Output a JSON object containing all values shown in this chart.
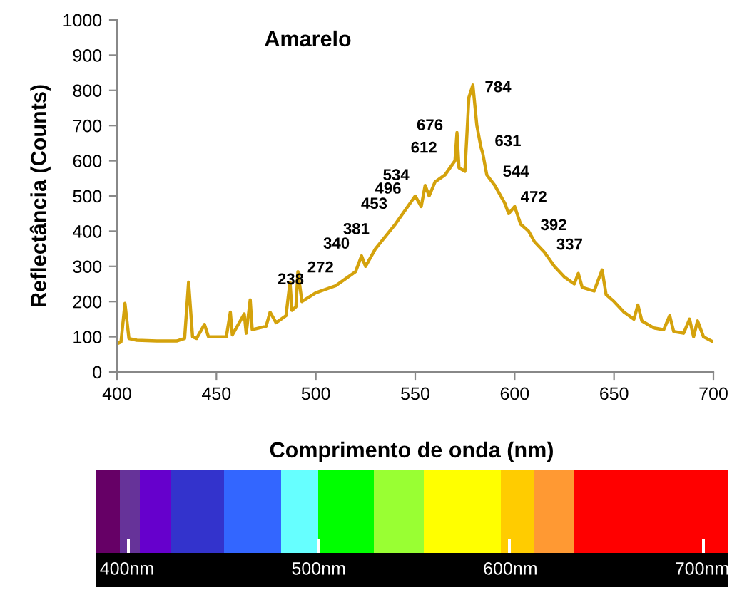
{
  "chart_data": {
    "type": "line",
    "title": "Amarelo",
    "xlabel": "Comprimento de onda (nm)",
    "ylabel": "Reflectância (Counts)",
    "x": [
      400,
      402,
      404,
      406,
      410,
      420,
      430,
      434,
      436,
      438,
      440,
      444,
      446,
      455,
      457,
      458,
      464,
      465,
      467,
      468,
      475,
      477,
      480,
      485,
      487,
      488,
      490,
      491,
      493,
      500,
      510,
      515,
      520,
      523,
      525,
      530,
      540,
      545,
      550,
      553,
      555,
      557,
      560,
      565,
      570,
      571,
      572,
      575,
      577,
      579,
      581,
      583,
      584,
      586,
      590,
      595,
      597,
      600,
      603,
      607,
      610,
      615,
      620,
      625,
      630,
      632,
      634,
      640,
      644,
      646,
      650,
      655,
      660,
      662,
      664,
      670,
      675,
      678,
      680,
      685,
      688,
      690,
      692,
      695,
      700
    ],
    "series": [
      {
        "color": "#d4a20c",
        "values": [
          80,
          85,
          195,
          95,
          90,
          88,
          88,
          95,
          255,
          100,
          95,
          135,
          100,
          100,
          170,
          105,
          165,
          110,
          205,
          120,
          130,
          170,
          140,
          160,
          255,
          175,
          185,
          285,
          200,
          225,
          245,
          265,
          285,
          330,
          300,
          350,
          420,
          460,
          500,
          470,
          530,
          500,
          540,
          560,
          600,
          680,
          580,
          570,
          780,
          815,
          700,
          640,
          620,
          560,
          530,
          480,
          450,
          470,
          420,
          400,
          370,
          340,
          300,
          270,
          250,
          280,
          240,
          230,
          290,
          220,
          200,
          170,
          150,
          190,
          145,
          125,
          120,
          160,
          115,
          110,
          150,
          100,
          145,
          100,
          85
        ]
      }
    ],
    "xlim": [
      400,
      700
    ],
    "xticks": [
      400,
      450,
      500,
      550,
      600,
      650,
      700
    ],
    "ylim": [
      0,
      1000
    ],
    "yticks": [
      0,
      100,
      200,
      300,
      400,
      500,
      600,
      700,
      800,
      900,
      1000
    ],
    "grid": false,
    "legend": false,
    "marker": "none",
    "line_style": "solid",
    "annotations": [
      {
        "text": "238",
        "x": 500,
        "y": 238
      },
      {
        "text": "272",
        "x": 515,
        "y": 272
      },
      {
        "text": "340",
        "x": 523,
        "y": 340
      },
      {
        "text": "381",
        "x": 533,
        "y": 381
      },
      {
        "text": "453",
        "x": 542,
        "y": 453
      },
      {
        "text": "496",
        "x": 549,
        "y": 496
      },
      {
        "text": "534",
        "x": 553,
        "y": 534
      },
      {
        "text": "612",
        "x": 567,
        "y": 612
      },
      {
        "text": "676",
        "x": 570,
        "y": 676
      },
      {
        "text": "784",
        "x": 579,
        "y": 784
      },
      {
        "text": "631",
        "x": 584,
        "y": 631
      },
      {
        "text": "544",
        "x": 588,
        "y": 544
      },
      {
        "text": "472",
        "x": 597,
        "y": 472
      },
      {
        "text": "392",
        "x": 607,
        "y": 392
      },
      {
        "text": "337",
        "x": 615,
        "y": 337
      },
      "400nm",
      "500nm",
      "600nm",
      "700nm"
    ]
  }
}
